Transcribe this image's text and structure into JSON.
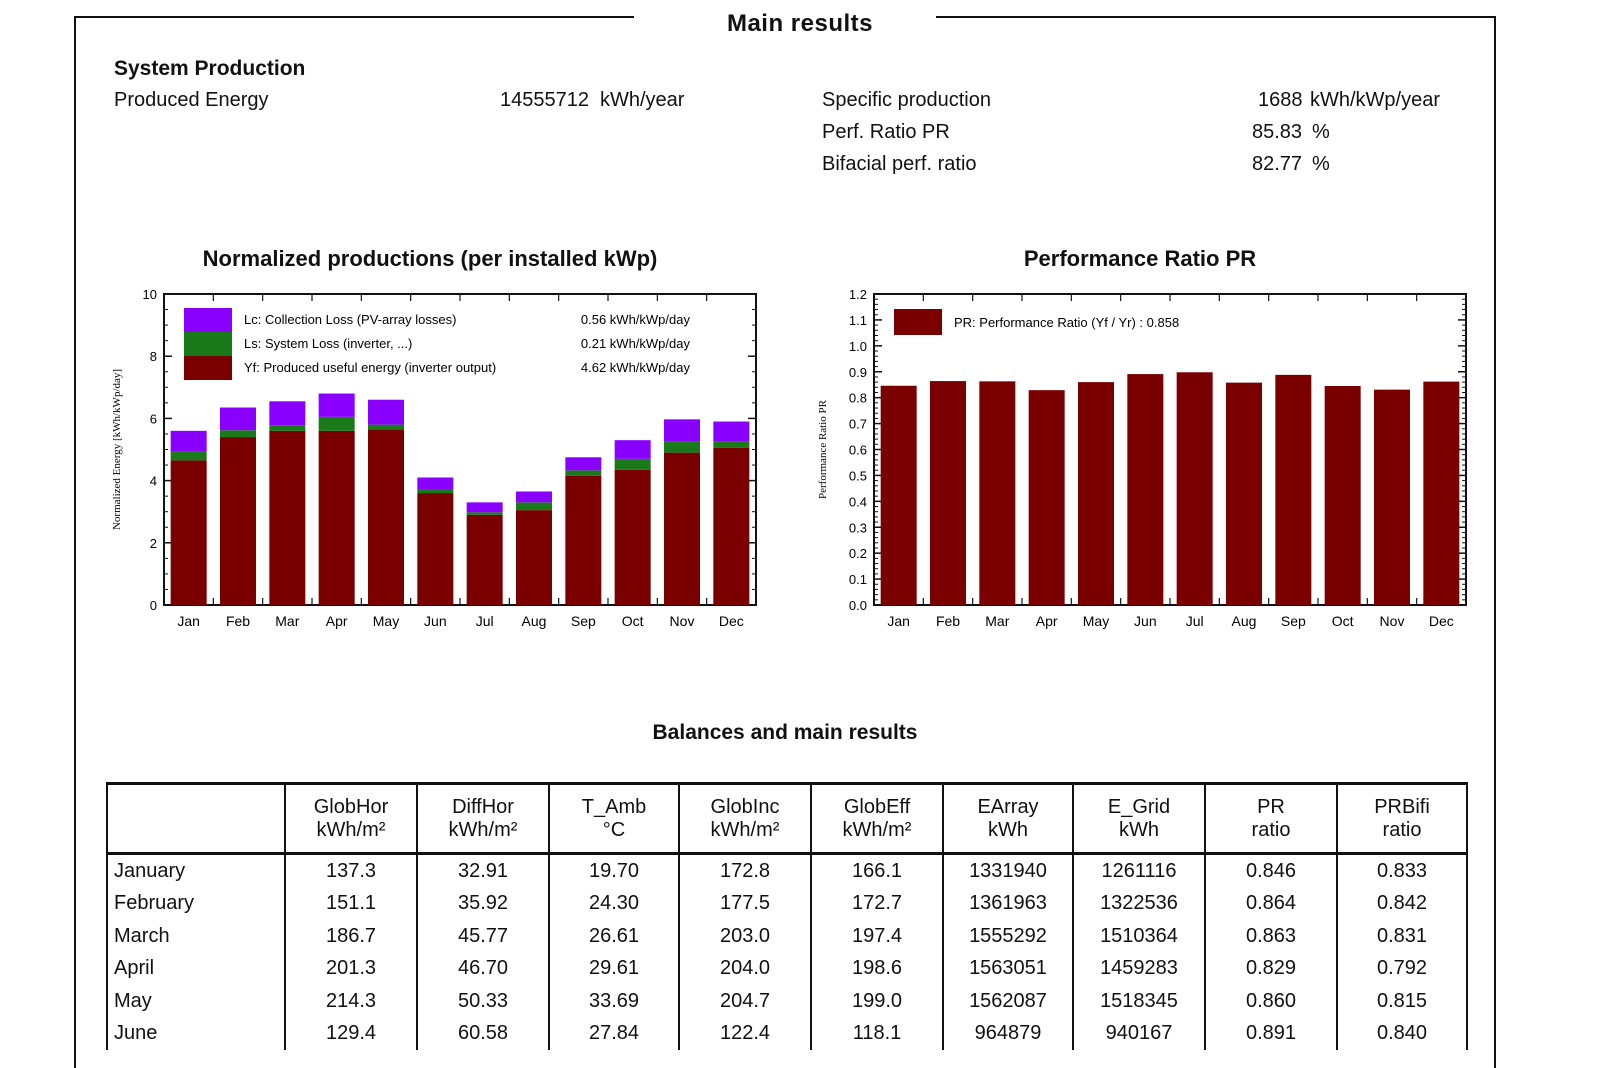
{
  "main_title": "Main results",
  "system_production": {
    "heading": "System Production",
    "produced_label": "Produced Energy",
    "produced_value": "14555712",
    "produced_unit": "kWh/year",
    "specific_label": "Specific production",
    "specific_value": "1688",
    "specific_unit": "kWh/kWp/year",
    "pr_label": "Perf. Ratio PR",
    "pr_value": "85.83",
    "pr_unit": "%",
    "bifacial_label": "Bifacial perf. ratio",
    "bifacial_value": "82.77",
    "bifacial_unit": "%"
  },
  "chart_data": [
    {
      "type": "bar",
      "stacked": true,
      "title": "Normalized productions (per installed kWp)",
      "ylabel": "Normalized Energy [kWh/kWp/day]",
      "xlabel": "",
      "ylim": [
        0,
        10
      ],
      "yticks": [
        "0",
        "2",
        "4",
        "6",
        "8",
        "10"
      ],
      "categories": [
        "Jan",
        "Feb",
        "Mar",
        "Apr",
        "May",
        "Jun",
        "Jul",
        "Aug",
        "Sep",
        "Oct",
        "Nov",
        "Dec"
      ],
      "series": [
        {
          "name": "Yf: Produced useful energy  (inverter output)",
          "value_label": "4.62 kWh/kWp/day",
          "color": "#7a0000",
          "values": [
            4.65,
            5.4,
            5.6,
            5.6,
            5.65,
            3.6,
            2.9,
            3.05,
            4.15,
            4.35,
            4.9,
            5.05
          ]
        },
        {
          "name": "Ls: System Loss  (inverter, ...)",
          "value_label": "0.21 kWh/kWp/day",
          "color": "#1a7a1a",
          "values": [
            0.3,
            0.22,
            0.18,
            0.45,
            0.15,
            0.1,
            0.08,
            0.25,
            0.18,
            0.35,
            0.35,
            0.2
          ]
        },
        {
          "name": "Lc: Collection Loss (PV-array losses)",
          "value_label": "0.56 kWh/kWp/day",
          "color": "#8a00ff",
          "values": [
            0.65,
            0.73,
            0.77,
            0.75,
            0.8,
            0.4,
            0.32,
            0.35,
            0.42,
            0.6,
            0.72,
            0.65
          ]
        }
      ],
      "legend": "top-left"
    },
    {
      "type": "bar",
      "title": "Performance Ratio PR",
      "ylabel": "Performance Ratio PR",
      "xlabel": "",
      "ylim": [
        0,
        1.2
      ],
      "yticks": [
        "0.0",
        "0.1",
        "0.2",
        "0.3",
        "0.4",
        "0.5",
        "0.6",
        "0.7",
        "0.8",
        "0.9",
        "1.0",
        "1.1",
        "1.2"
      ],
      "categories": [
        "Jan",
        "Feb",
        "Mar",
        "Apr",
        "May",
        "Jun",
        "Jul",
        "Aug",
        "Sep",
        "Oct",
        "Nov",
        "Dec"
      ],
      "series": [
        {
          "name": "PR: Performance Ratio (Yf / Yr) :  0.858",
          "color": "#7a0000",
          "values": [
            0.846,
            0.864,
            0.863,
            0.829,
            0.86,
            0.891,
            0.898,
            0.858,
            0.888,
            0.845,
            0.831,
            0.862
          ]
        }
      ],
      "legend": "top-left"
    }
  ],
  "balances": {
    "title": "Balances and main results",
    "columns": [
      {
        "name": "GlobHor",
        "unit": "kWh/m²"
      },
      {
        "name": "DiffHor",
        "unit": "kWh/m²"
      },
      {
        "name": "T_Amb",
        "unit": "°C"
      },
      {
        "name": "GlobInc",
        "unit": "kWh/m²"
      },
      {
        "name": "GlobEff",
        "unit": "kWh/m²"
      },
      {
        "name": "EArray",
        "unit": "kWh"
      },
      {
        "name": "E_Grid",
        "unit": "kWh"
      },
      {
        "name": "PR",
        "unit": "ratio"
      },
      {
        "name": "PRBifi",
        "unit": "ratio"
      }
    ],
    "rows": [
      {
        "month": "January",
        "values": [
          "137.3",
          "32.91",
          "19.70",
          "172.8",
          "166.1",
          "1331940",
          "1261116",
          "0.846",
          "0.833"
        ]
      },
      {
        "month": "February",
        "values": [
          "151.1",
          "35.92",
          "24.30",
          "177.5",
          "172.7",
          "1361963",
          "1322536",
          "0.864",
          "0.842"
        ]
      },
      {
        "month": "March",
        "values": [
          "186.7",
          "45.77",
          "26.61",
          "203.0",
          "197.4",
          "1555292",
          "1510364",
          "0.863",
          "0.831"
        ]
      },
      {
        "month": "April",
        "values": [
          "201.3",
          "46.70",
          "29.61",
          "204.0",
          "198.6",
          "1563051",
          "1459283",
          "0.829",
          "0.792"
        ]
      },
      {
        "month": "May",
        "values": [
          "214.3",
          "50.33",
          "33.69",
          "204.7",
          "199.0",
          "1562087",
          "1518345",
          "0.860",
          "0.815"
        ]
      },
      {
        "month": "June",
        "values": [
          "129.4",
          "60.58",
          "27.84",
          "122.4",
          "118.1",
          "964879",
          "940167",
          "0.891",
          "0.840"
        ]
      }
    ]
  }
}
